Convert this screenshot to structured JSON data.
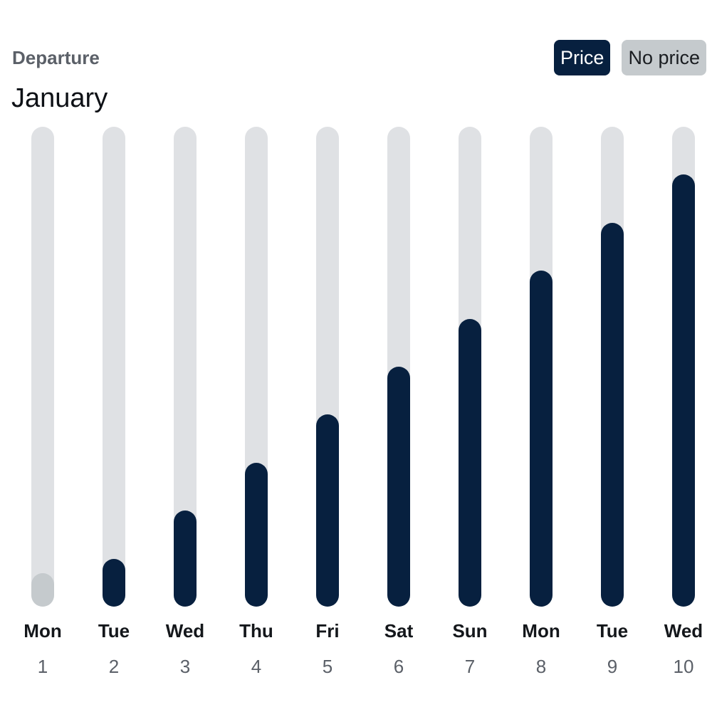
{
  "header": {
    "label": "Departure",
    "month": "January"
  },
  "legend": {
    "price_label": "Price",
    "no_price_label": "No price",
    "colors": {
      "price": "#07203f",
      "no_price": "#c5cacd",
      "track": "#dfe1e4"
    }
  },
  "chart_data": {
    "type": "bar",
    "categories": [
      "1",
      "2",
      "3",
      "4",
      "5",
      "6",
      "7",
      "8",
      "9",
      "10"
    ],
    "weekdays": [
      "Mon",
      "Tue",
      "Wed",
      "Thu",
      "Fri",
      "Sat",
      "Sun",
      "Mon",
      "Tue",
      "Wed"
    ],
    "values": [
      0.07,
      0.1,
      0.2,
      0.3,
      0.4,
      0.5,
      0.6,
      0.7,
      0.8,
      0.9
    ],
    "has_price": [
      false,
      true,
      true,
      true,
      true,
      true,
      true,
      true,
      true,
      true
    ],
    "ylim": [
      0,
      1
    ]
  }
}
